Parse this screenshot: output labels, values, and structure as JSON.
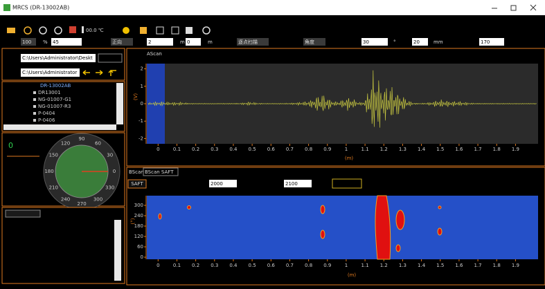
{
  "window": {
    "title": "MRCS (DR-13002AB)"
  },
  "toolbar": {
    "temperature": "00.0 ℃"
  },
  "params": [
    "100",
    "%",
    "45",
    "正向",
    "2",
    "m",
    "0",
    "m",
    "逐点扫描",
    "角度",
    "30",
    "°",
    "20",
    "mm",
    "170"
  ],
  "left": {
    "paths": [
      "C:\\Users\\Administrator\\Deskt",
      "C:\\Users\\Administrator"
    ],
    "tree": [
      "DR-13002AB",
      "DR13001",
      "NG-01007-G1",
      "NG-01007-R3",
      "P-0404",
      "P-0406"
    ],
    "dial": {
      "value": "0",
      "labels": [
        "90",
        "60",
        "30",
        "0",
        "330",
        "300",
        "270",
        "240",
        "210",
        "180",
        "150",
        "120"
      ]
    }
  },
  "ascan": {
    "title": "AScan",
    "ylabel": "(V)",
    "xlabel": "(m)",
    "xlim": [
      -0.06,
      2.02
    ],
    "ylim": [
      -2.3,
      2.3
    ],
    "xticks": [
      0,
      0.1,
      0.2,
      0.3,
      0.4,
      0.5,
      0.6,
      0.7,
      0.8,
      0.9,
      1,
      1.1,
      1.2,
      1.3,
      1.4,
      1.5,
      1.6,
      1.7,
      1.8,
      1.9
    ],
    "yticks": [
      2,
      1,
      0,
      -1,
      -2
    ]
  },
  "bscan": {
    "tabs": [
      "BScan",
      "BScan SAFT"
    ],
    "button": "SAFT",
    "fields": [
      "2000",
      "2100"
    ],
    "ylabel": "(°)",
    "xlabel": "(m)",
    "xlim": [
      -0.06,
      2.02
    ],
    "ylim": [
      -12,
      356
    ],
    "xticks": [
      0,
      0.1,
      0.2,
      0.3,
      0.4,
      0.5,
      0.6,
      0.7,
      0.8,
      0.9,
      1,
      1.1,
      1.2,
      1.3,
      1.4,
      1.5,
      1.6,
      1.7,
      1.8,
      1.9
    ],
    "yticks": [
      300,
      240,
      180,
      120,
      60,
      0
    ]
  }
}
